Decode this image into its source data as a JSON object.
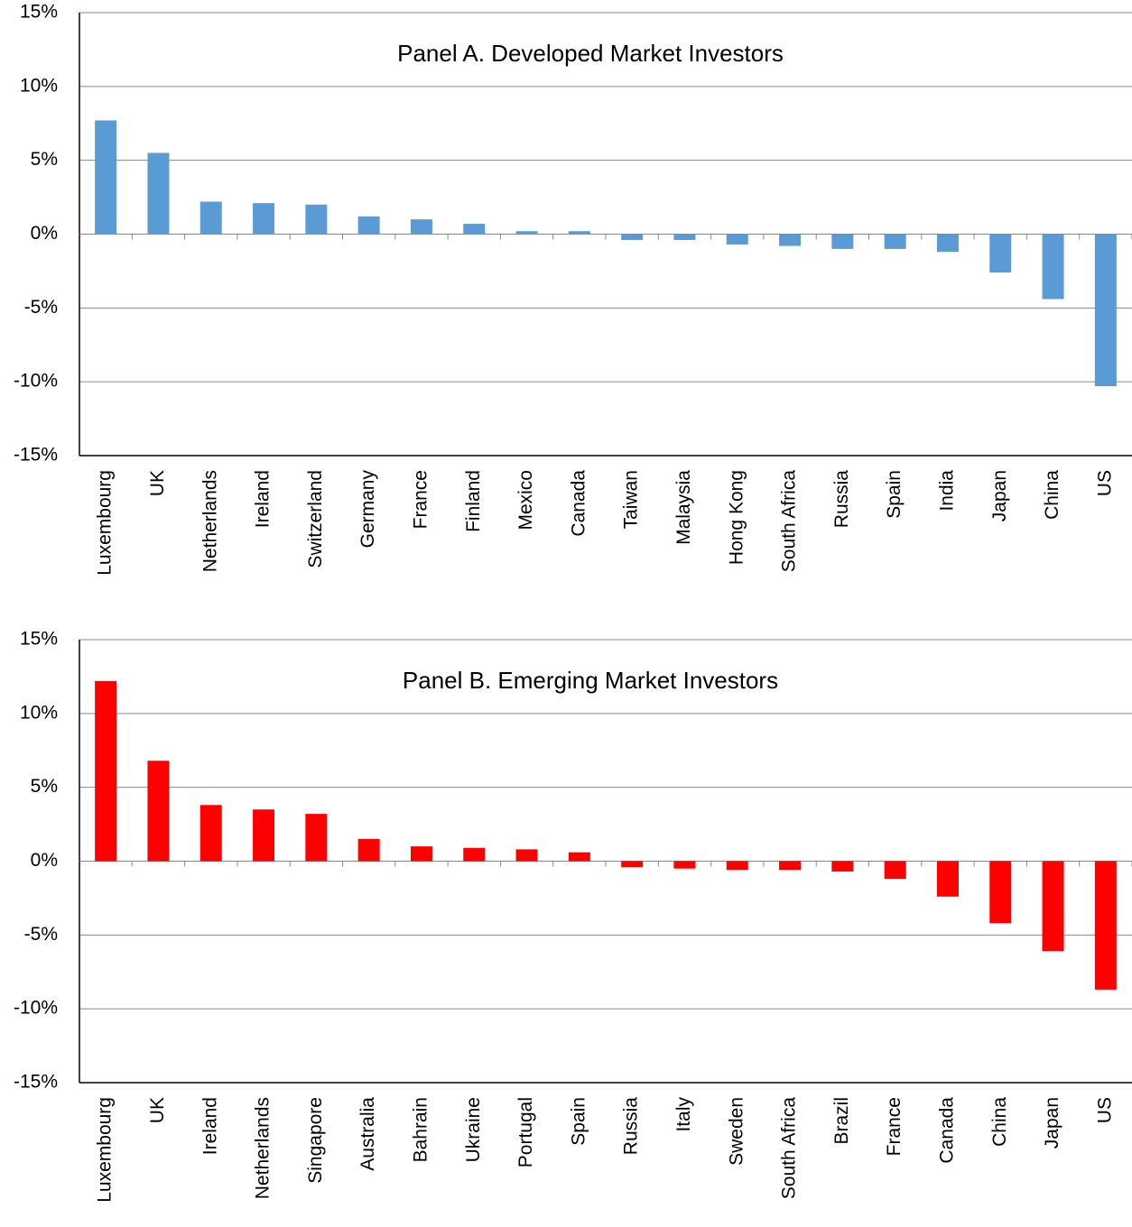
{
  "chart_data": [
    {
      "type": "bar",
      "title": "Panel A. Developed Market Investors",
      "color": "#5b9bd5",
      "grid": true,
      "categories": [
        "Luxembourg",
        "UK",
        "Netherlands",
        "Ireland",
        "Switzerland",
        "Germany",
        "France",
        "Finland",
        "Mexico",
        "Canada",
        "Taiwan",
        "Malaysia",
        "Hong Kong",
        "South Africa",
        "Russia",
        "Spain",
        "India",
        "Japan",
        "China",
        "US"
      ],
      "values": [
        7.7,
        5.5,
        2.2,
        2.1,
        2.0,
        1.2,
        1.0,
        0.7,
        0.2,
        0.2,
        -0.4,
        -0.4,
        -0.7,
        -0.8,
        -1.0,
        -1.0,
        -1.2,
        -2.6,
        -4.4,
        -10.3
      ],
      "ylim": [
        -15,
        15
      ],
      "yticks": [
        {
          "value": -15,
          "label": "-15%"
        },
        {
          "value": -10,
          "label": "-10%"
        },
        {
          "value": -5,
          "label": "-5%"
        },
        {
          "value": 0,
          "label": "0%"
        },
        {
          "value": 5,
          "label": "5%"
        },
        {
          "value": 10,
          "label": "10%"
        },
        {
          "value": 15,
          "label": "15%"
        }
      ]
    },
    {
      "type": "bar",
      "title": "Panel B. Emerging Market Investors",
      "color": "#ff0000",
      "grid": true,
      "categories": [
        "Luxembourg",
        "UK",
        "Ireland",
        "Netherlands",
        "Singapore",
        "Australia",
        "Bahrain",
        "Ukraine",
        "Portugal",
        "Spain",
        "Russia",
        "Italy",
        "Sweden",
        "South Africa",
        "Brazil",
        "France",
        "Canada",
        "China",
        "Japan",
        "US"
      ],
      "values": [
        12.2,
        6.8,
        3.8,
        3.5,
        3.2,
        1.5,
        1.0,
        0.9,
        0.8,
        0.6,
        -0.4,
        -0.5,
        -0.6,
        -0.6,
        -0.7,
        -1.2,
        -2.4,
        -4.2,
        -6.1,
        -8.7
      ],
      "ylim": [
        -15,
        15
      ],
      "yticks": [
        {
          "value": -15,
          "label": "-15%"
        },
        {
          "value": -10,
          "label": "-10%"
        },
        {
          "value": -5,
          "label": "-5%"
        },
        {
          "value": 0,
          "label": "0%"
        },
        {
          "value": 5,
          "label": "5%"
        },
        {
          "value": 10,
          "label": "10%"
        },
        {
          "value": 15,
          "label": "15%"
        }
      ]
    }
  ]
}
